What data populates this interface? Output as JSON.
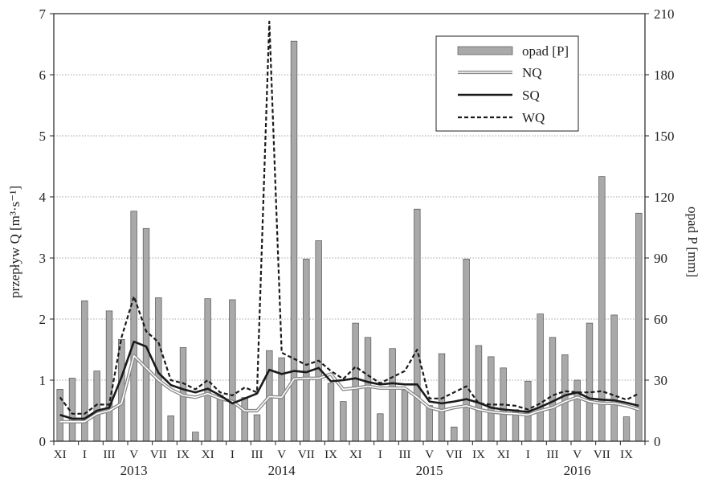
{
  "chart_data": {
    "type": "bar+line",
    "x_month_labels": [
      "XI",
      "I",
      "III",
      "V",
      "VII",
      "IX",
      "XI",
      "I",
      "III",
      "V",
      "VII",
      "IX",
      "XI",
      "I",
      "III",
      "V",
      "VII",
      "IX",
      "XI",
      "I",
      "III",
      "V",
      "VII",
      "IX"
    ],
    "years": [
      "2013",
      "2014",
      "2015",
      "2016"
    ],
    "ylabel_left": "przepływ Q [m³·s⁻¹]",
    "ylabel_right": "opad P [mm]",
    "ylim_left": [
      0,
      7
    ],
    "yticks_left": [
      "0",
      "1",
      "2",
      "3",
      "4",
      "5",
      "6",
      "7"
    ],
    "ylim_right": [
      0,
      210
    ],
    "yticks_right": [
      "0",
      "30",
      "60",
      "90",
      "120",
      "150",
      "180",
      "210"
    ],
    "grid": "horizontal dotted",
    "legend_position": "top-right",
    "legend": [
      "opad [P]",
      "NQ",
      "SQ",
      "WQ"
    ],
    "series": [
      {
        "name": "opad [P]",
        "kind": "bar",
        "axis": "right",
        "color": "#a9a9a9",
        "values": [
          25.5,
          31,
          69,
          34.5,
          64,
          50,
          113,
          104.5,
          70.5,
          12.5,
          46,
          4.5,
          70,
          22.5,
          69.5,
          21.5,
          13,
          44.5,
          41,
          196.5,
          89.5,
          98.5,
          28.5,
          19.5,
          58,
          51,
          13.5,
          45.5,
          25,
          114,
          17.5,
          43,
          7,
          89.5,
          47,
          41.5,
          36,
          15.5,
          29.5,
          62.5,
          51,
          42.5,
          30,
          58,
          130,
          62,
          12,
          112
        ]
      },
      {
        "name": "NQ",
        "kind": "line",
        "axis": "left",
        "color": "#999999",
        "values": [
          0.32,
          0.32,
          0.32,
          0.45,
          0.5,
          0.62,
          1.4,
          1.2,
          1.0,
          0.85,
          0.75,
          0.72,
          0.78,
          0.7,
          0.65,
          0.5,
          0.5,
          0.73,
          0.72,
          1.02,
          1.03,
          1.03,
          1.1,
          0.85,
          0.87,
          0.9,
          0.87,
          0.87,
          0.87,
          0.72,
          0.55,
          0.5,
          0.55,
          0.58,
          0.52,
          0.48,
          0.46,
          0.45,
          0.43,
          0.5,
          0.55,
          0.65,
          0.72,
          0.65,
          0.62,
          0.62,
          0.58,
          0.52
        ]
      },
      {
        "name": "SQ",
        "kind": "line",
        "axis": "left",
        "color": "#1a1a1a",
        "values": [
          0.43,
          0.37,
          0.37,
          0.5,
          0.55,
          1.05,
          1.63,
          1.55,
          1.12,
          0.92,
          0.85,
          0.8,
          0.86,
          0.75,
          0.62,
          0.7,
          0.78,
          1.17,
          1.1,
          1.15,
          1.13,
          1.2,
          0.98,
          1.0,
          1.03,
          0.97,
          0.93,
          0.95,
          0.93,
          0.93,
          0.65,
          0.62,
          0.65,
          0.69,
          0.63,
          0.55,
          0.52,
          0.5,
          0.48,
          0.56,
          0.65,
          0.75,
          0.8,
          0.7,
          0.68,
          0.67,
          0.63,
          0.58
        ]
      },
      {
        "name": "WQ",
        "kind": "line",
        "axis": "left",
        "color": "#1a1a1a",
        "dash": true,
        "values": [
          0.72,
          0.45,
          0.45,
          0.6,
          0.6,
          1.7,
          2.37,
          1.8,
          1.62,
          1.0,
          0.95,
          0.85,
          1.0,
          0.8,
          0.75,
          0.88,
          0.8,
          6.87,
          1.45,
          1.35,
          1.25,
          1.32,
          1.15,
          1.02,
          1.22,
          1.08,
          0.95,
          1.05,
          1.15,
          1.5,
          0.7,
          0.7,
          0.8,
          0.9,
          0.62,
          0.6,
          0.6,
          0.58,
          0.52,
          0.62,
          0.75,
          0.82,
          0.8,
          0.8,
          0.82,
          0.75,
          0.68,
          0.78
        ]
      }
    ]
  }
}
